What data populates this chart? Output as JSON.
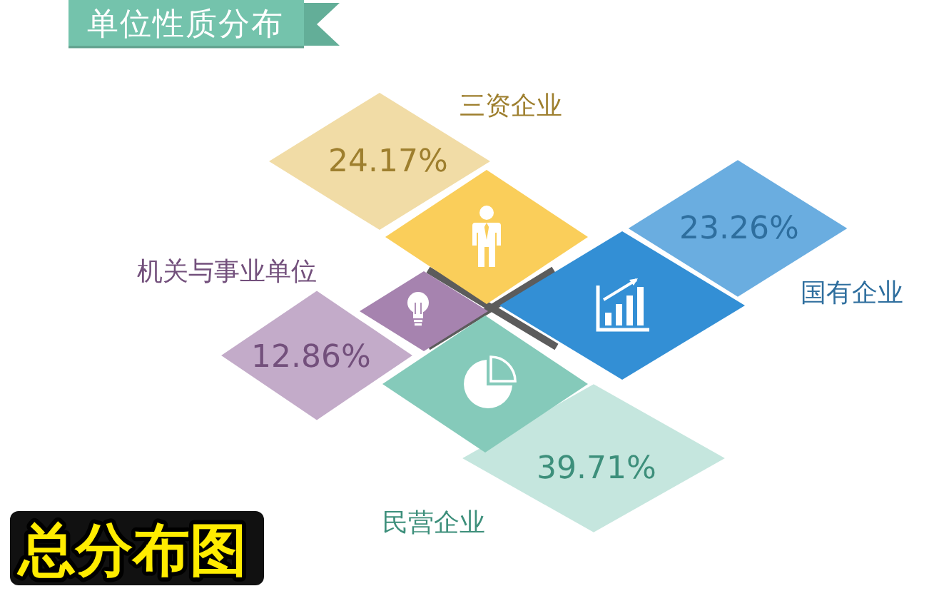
{
  "chart_data": {
    "type": "other",
    "title": "单位性质分布",
    "categories": [
      "三资企业",
      "国有企业",
      "机关与事业单位",
      "民营企业"
    ],
    "values": [
      24.17,
      23.26,
      12.86,
      39.71
    ],
    "value_labels": [
      "24.17%",
      "23.26%",
      "12.86%",
      "39.71%"
    ],
    "colors": [
      "#f1dca6",
      "#6aade0",
      "#c3abc9",
      "#c5e6de"
    ],
    "annotations": [
      "总分布图"
    ]
  }
}
